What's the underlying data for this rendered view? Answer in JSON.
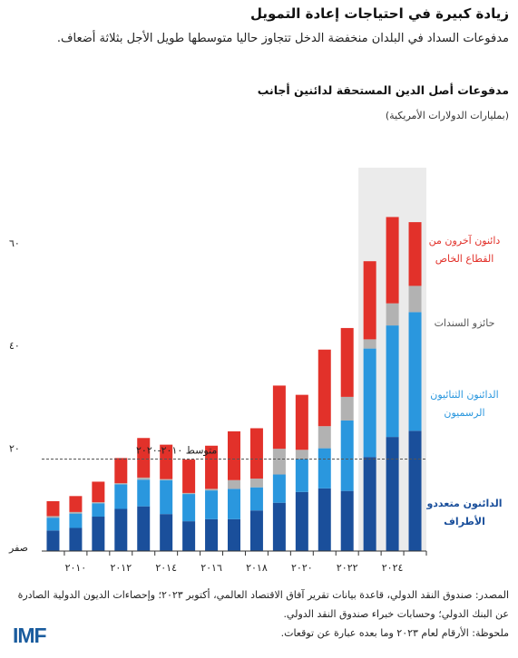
{
  "header": {
    "title": "زيادة كبيرة في احتياجات إعادة التمويل",
    "subtitle": "مدفوعات السداد في البلدان منخفضة الدخل تتجاوز حاليا متوسطها طويل الأجل بثلاثة أضعاف.",
    "chart_title": "مدفوعات أصل الدين المستحقة لدائنين أجانب",
    "chart_subtitle": "(بمليارات الدولارات الأمريكية)"
  },
  "chart_data": {
    "type": "bar",
    "stacked": true,
    "x": [
      2009,
      2010,
      2011,
      2012,
      2013,
      2014,
      2015,
      2016,
      2017,
      2018,
      2019,
      2020,
      2021,
      2022,
      2023,
      2024,
      2025
    ],
    "x_tick_labels": [
      "٢٠١٠",
      "٢٠١٢",
      "٢٠١٤",
      "٢٠١٦",
      "٢٠١٨",
      "٢٠٢٠",
      "٢٠٢٢",
      "٢٠٢٤"
    ],
    "x_tick_values": [
      2010,
      2012,
      2014,
      2016,
      2018,
      2020,
      2022,
      2024
    ],
    "y_tick_labels": [
      "صفر",
      "٢٠",
      "٤٠",
      "٦٠"
    ],
    "y_tick_values": [
      0,
      20,
      40,
      60
    ],
    "ylim": [
      0,
      70
    ],
    "series": [
      {
        "name": "الدائنون متعددو الأطراف",
        "color": "#1a4f9b",
        "values": [
          4.0,
          4.5,
          6.7,
          8.2,
          8.7,
          7.2,
          5.8,
          6.2,
          6.2,
          7.9,
          9.4,
          11.5,
          12.2,
          11.7,
          18.3,
          22.2,
          23.4
        ]
      },
      {
        "name": "الدائنون الثنائيون الرسميون",
        "color": "#2a97de",
        "values": [
          2.5,
          2.8,
          2.6,
          4.8,
          5.2,
          6.6,
          5.3,
          5.6,
          5.9,
          4.5,
          5.5,
          6.4,
          7.8,
          13.7,
          21.1,
          21.7,
          23.1
        ]
      },
      {
        "name": "حائزو السندات",
        "color": "#b2b2b2",
        "values": [
          0.3,
          0.3,
          0.2,
          0.2,
          0.4,
          0.2,
          0.2,
          0.3,
          1.7,
          1.7,
          5.0,
          1.8,
          4.3,
          4.6,
          1.8,
          4.3,
          5.1
        ]
      },
      {
        "name": "دائنون آخرون من القطاع الخاص",
        "color": "#e2312a",
        "values": [
          2.9,
          3.1,
          4.0,
          4.9,
          7.7,
          6.7,
          6.5,
          8.4,
          9.5,
          9.8,
          12.3,
          10.7,
          14.9,
          13.4,
          15.2,
          16.8,
          12.4
        ]
      }
    ],
    "reference_line": {
      "label": "متوسط ٢٠١٠-٢٠٢٠",
      "value": 17.9
    },
    "projection_note": {
      "from_x": 2023
    }
  },
  "footer": {
    "source": "المصدر: صندوق النقد الدولي، قاعدة بيانات تقرير آفاق الاقتصاد العالمي، أكتوبر ٢٠٢٣؛ وإحصاءات الديون الدولية الصادرة عن البنك الدولي؛ وحسابات خبراء صندوق النقد الدولي.",
    "note": "ملحوظة: الأرقام لعام ٢٠٢٣ وما بعده عبارة عن توقعات."
  },
  "logo": {
    "text": "IMF",
    "color": "#1a5c9e"
  }
}
